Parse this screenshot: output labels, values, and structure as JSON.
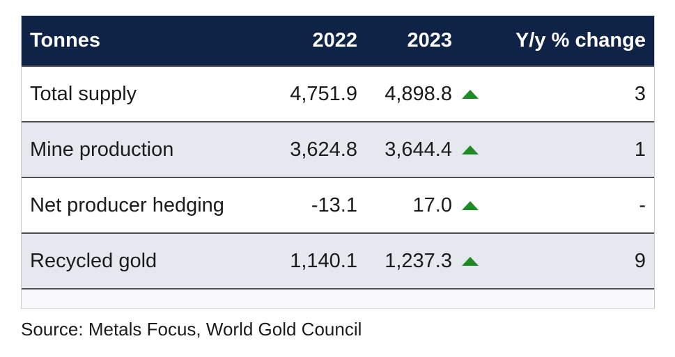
{
  "chart_data": {
    "type": "table",
    "columns": [
      "Tonnes",
      "2022",
      "2023",
      "Y/y % change"
    ],
    "rows": [
      [
        "Total supply",
        4751.9,
        4898.8,
        "3"
      ],
      [
        "Mine production",
        3624.8,
        3644.4,
        "1"
      ],
      [
        "Net producer hedging",
        -13.1,
        17.0,
        "-"
      ],
      [
        "Recycled gold",
        1140.1,
        1237.3,
        "9"
      ]
    ],
    "trend_indicators": [
      "up",
      "up",
      "up",
      "up"
    ],
    "source": "Source: Metals Focus, World Gold Council"
  },
  "table": {
    "header": {
      "col_label": "Tonnes",
      "col_2022": "2022",
      "col_2023": "2023",
      "col_change": "Y/y % change"
    },
    "rows": [
      {
        "label": "Total supply",
        "v2022": "4,751.9",
        "v2023": "4,898.8",
        "trend": "up",
        "change": "3"
      },
      {
        "label": "Mine production",
        "v2022": "3,624.8",
        "v2023": "3,644.4",
        "trend": "up",
        "change": "1"
      },
      {
        "label": "Net producer hedging",
        "v2022": "-13.1",
        "v2023": "17.0",
        "trend": "up",
        "change": "-"
      },
      {
        "label": "Recycled gold",
        "v2022": "1,140.1",
        "v2023": "1,237.3",
        "trend": "up",
        "change": "9"
      }
    ]
  },
  "source": "Source: Metals Focus, World Gold Council",
  "colors": {
    "header_bg": "#0f2347",
    "row_alt_bg": "#e6e8f0",
    "separator": "#4e4e50",
    "arrow_green": "#1e8b24",
    "text": "#1b1b1b"
  }
}
